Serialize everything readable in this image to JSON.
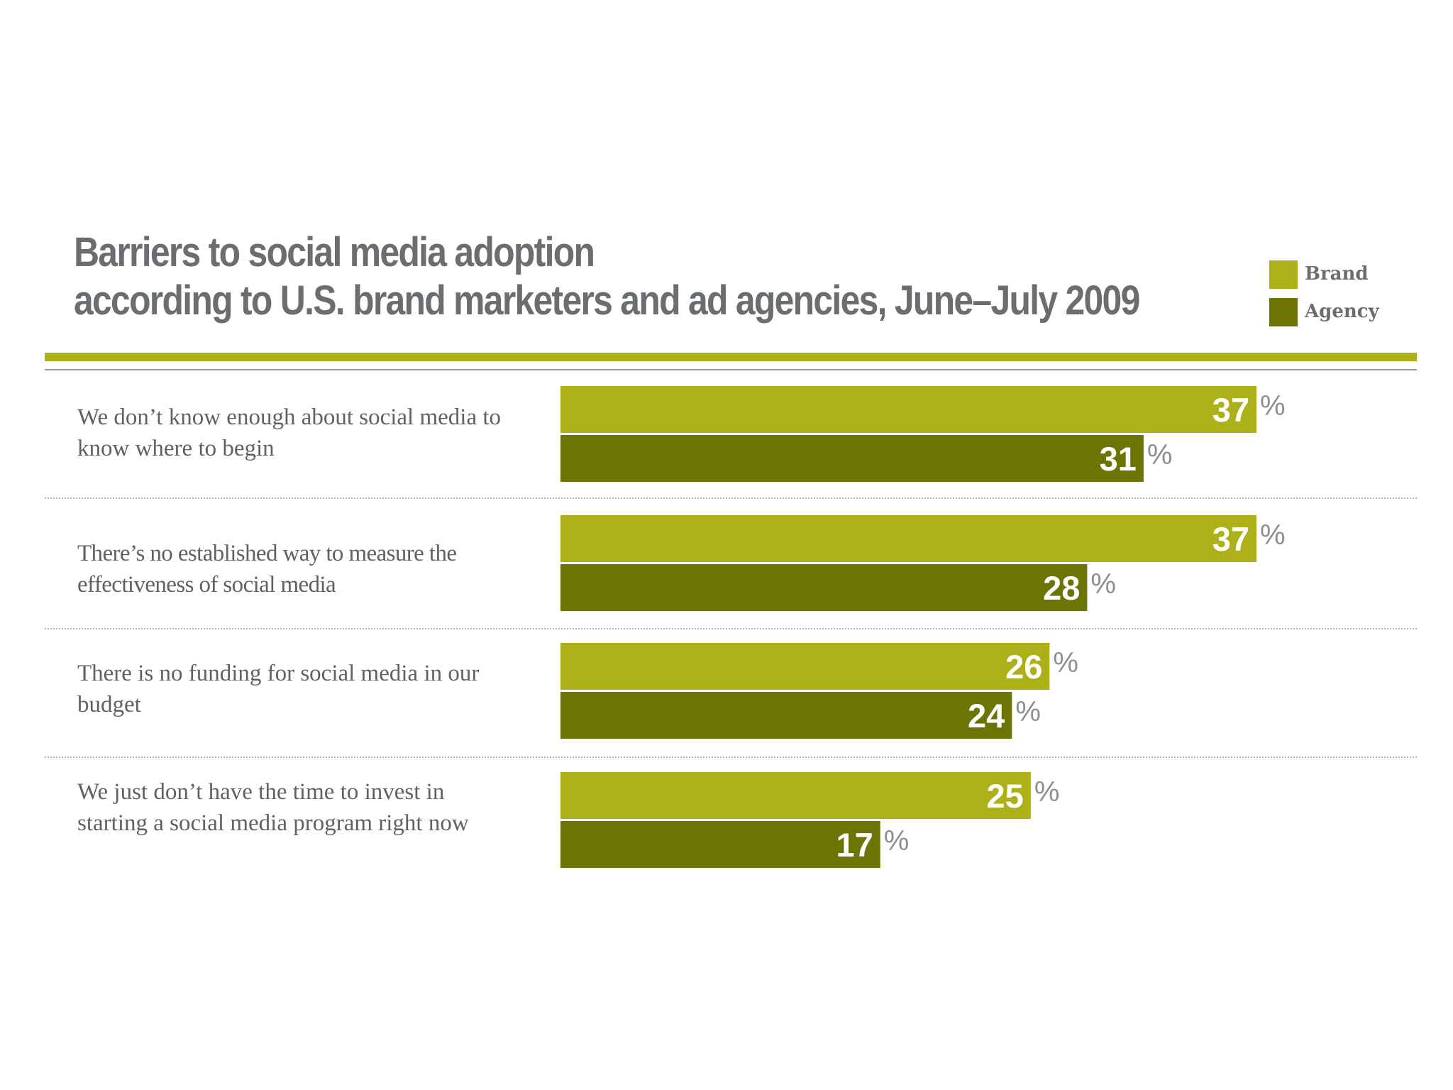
{
  "chart_data": {
    "type": "bar",
    "orientation": "horizontal",
    "title_line1": "Barriers to social media adoption",
    "title_line2": "according to U.S. brand marketers and ad agencies, June–July 2009",
    "unit": "%",
    "categories": [
      "We don’t know enough about social media to know where to begin",
      "There’s no established way to measure the effectiveness of social media",
      "There is no funding for social media in our budget",
      "We just don’t have the time to invest in starting a social media program right now"
    ],
    "series": [
      {
        "name": "Brand",
        "color": "#adb019",
        "values": [
          37,
          37,
          26,
          25
        ]
      },
      {
        "name": "Agency",
        "color": "#6c7504",
        "values": [
          31,
          28,
          24,
          17
        ]
      }
    ],
    "xlim": [
      0,
      37
    ],
    "legend_position": "top-right",
    "grid": false
  }
}
